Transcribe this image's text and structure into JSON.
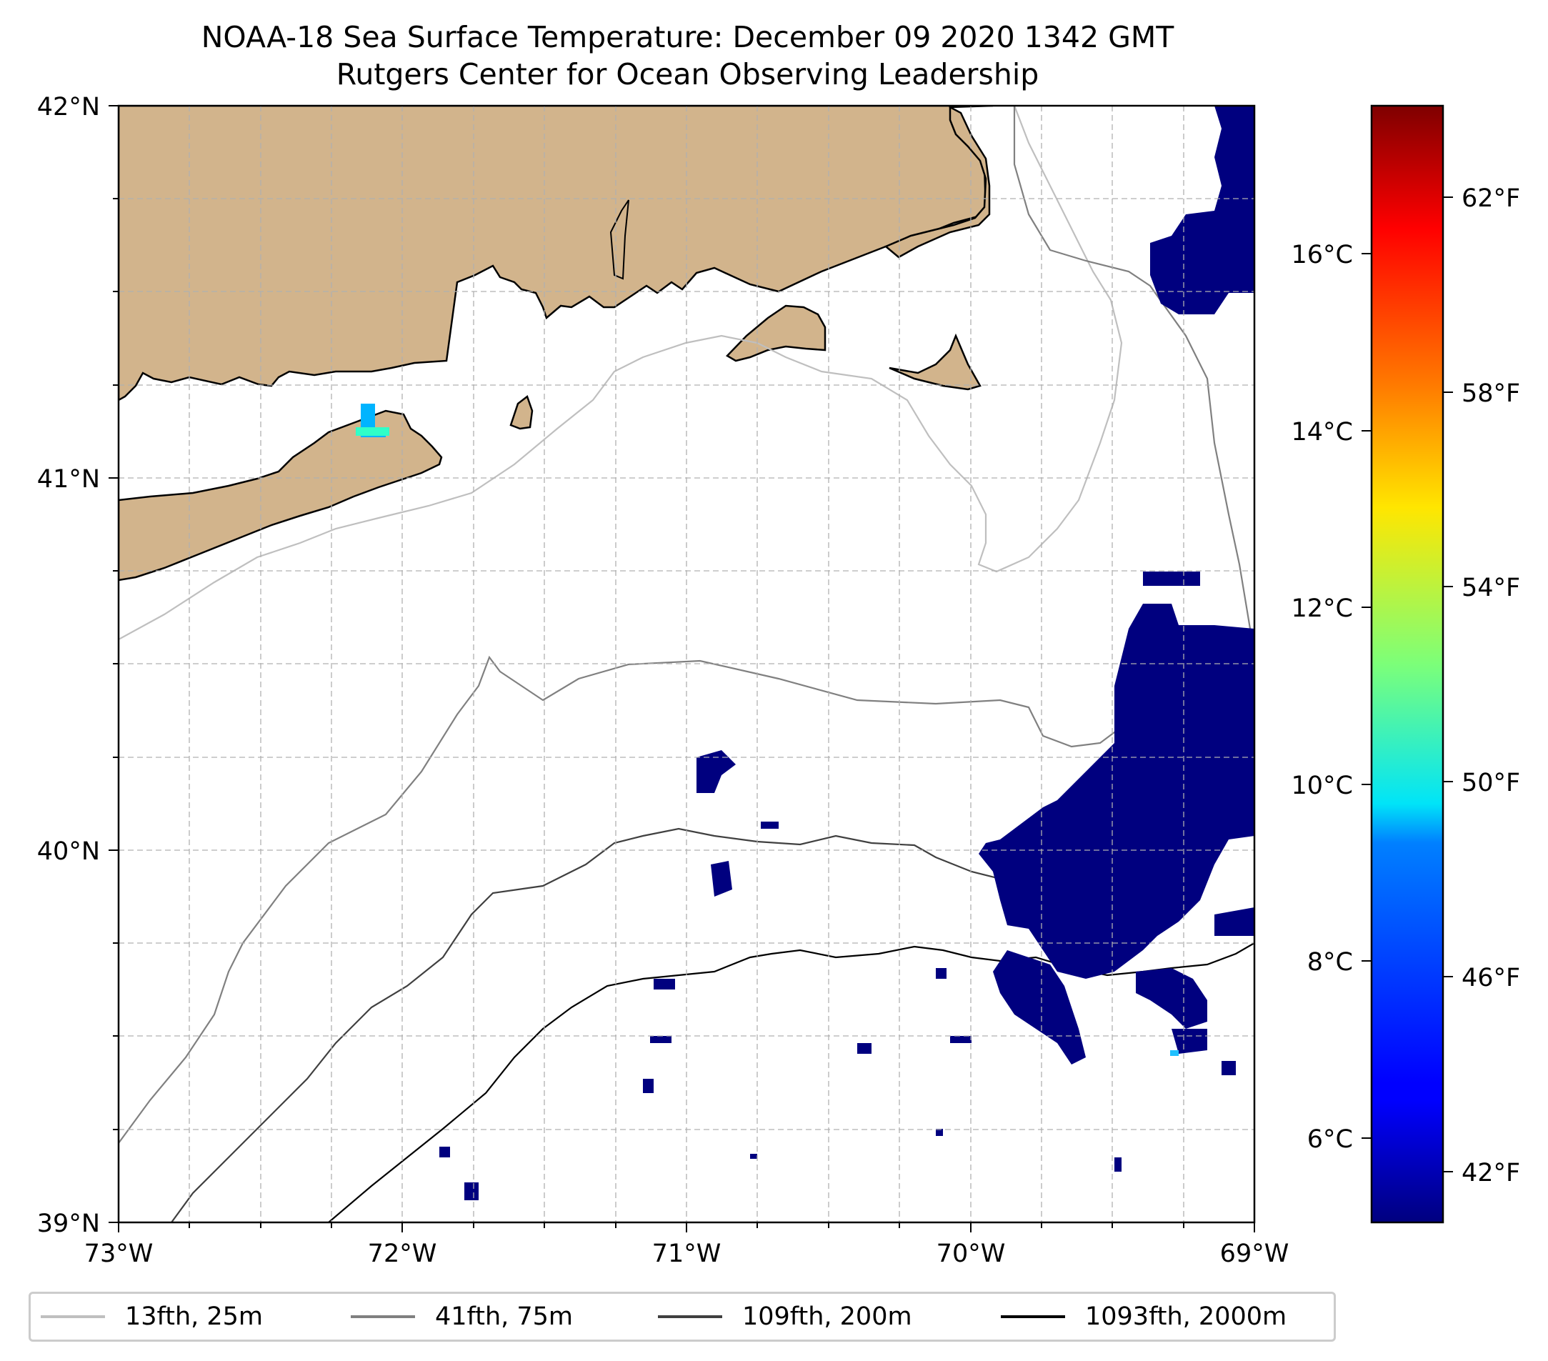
{
  "title": {
    "line1": "NOAA-18 Sea Surface Temperature: December 09 2020 1342 GMT",
    "line2": "Rutgers Center for Ocean Observing Leadership"
  },
  "map": {
    "lat_ticks": [
      "42°N",
      "41°N",
      "40°N",
      "39°N"
    ],
    "lon_ticks": [
      "73°W",
      "72°W",
      "71°W",
      "70°W",
      "69°W"
    ],
    "lat_range": [
      39,
      42
    ],
    "lon_range": [
      -73,
      -69
    ],
    "land_color": "#d2b48c",
    "no_data_color": "#ffffff",
    "gridlines": true
  },
  "colorbar": {
    "celsius_ticks": [
      "16°C",
      "14°C",
      "12°C",
      "10°C",
      "8°C",
      "6°C"
    ],
    "fahrenheit_ticks": [
      "62°F",
      "58°F",
      "54°F",
      "50°F",
      "46°F",
      "42°F"
    ],
    "colormap": "jet",
    "range_c": [
      5.1,
      17.6
    ]
  },
  "legend": [
    {
      "label": "13fth, 25m",
      "color": "#bfbfbf"
    },
    {
      "label": "41fth, 75m",
      "color": "#808080"
    },
    {
      "label": "109fth, 200m",
      "color": "#404040"
    },
    {
      "label": "1093fth, 2000m",
      "color": "#000000"
    }
  ]
}
